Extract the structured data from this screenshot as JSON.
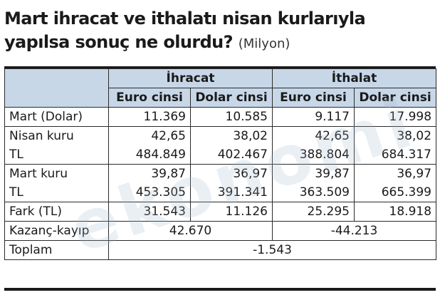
{
  "title": {
    "line1": "Mart ihracat ve ithalatı nisan kurlarıyla",
    "line2": "yapılsa sonuç ne olurdu?",
    "unit": "(Milyon)"
  },
  "watermark": "ekonomi",
  "table": {
    "group_headers": [
      "İhracat",
      "İthalat"
    ],
    "column_headers": [
      "Euro cinsi",
      "Dolar cinsi",
      "Euro cinsi",
      "Dolar cinsi"
    ],
    "rows": [
      {
        "label": "Mart (Dolar)",
        "values": [
          "11.369",
          "10.585",
          "9.117",
          "17.998"
        ]
      },
      {
        "label": "Nisan kuru",
        "values": [
          "42,65",
          "38,02",
          "42,65",
          "38,02"
        ]
      },
      {
        "label": "TL",
        "values": [
          "484.849",
          "402.467",
          "388.804",
          "684.317"
        ]
      },
      {
        "label": "Mart kuru",
        "values": [
          "39,87",
          "36,97",
          "39,87",
          "36,97"
        ]
      },
      {
        "label": "TL",
        "values": [
          "453.305",
          "391.341",
          "363.509",
          "665.399"
        ]
      },
      {
        "label": "Fark (TL)",
        "values": [
          "31.543",
          "11.126",
          "25.295",
          "18.918"
        ]
      }
    ],
    "kazanc": {
      "label": "Kazanç-kayıp",
      "ihracat": "42.670",
      "ithalat": "-44.213"
    },
    "toplam": {
      "label": "Toplam",
      "value": "-1.543"
    }
  },
  "colors": {
    "header_fill": "#c7d7e8",
    "text": "#1a1a1a"
  }
}
